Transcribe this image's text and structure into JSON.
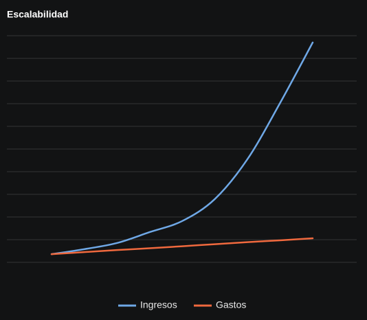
{
  "chart_data": {
    "type": "line",
    "title": "Escalabilidad",
    "categories": [
      null,
      null,
      null,
      null,
      null,
      null,
      null,
      null,
      null
    ],
    "series": [
      {
        "name": "Ingresos",
        "color": "#6fa8e6",
        "values": [
          0.36,
          0.58,
          0.85,
          1.33,
          1.82,
          2.79,
          4.55,
          7.03,
          9.7
        ]
      },
      {
        "name": "Gastos",
        "color": "#f0693e",
        "values": [
          0.36,
          0.45,
          0.54,
          0.62,
          0.71,
          0.8,
          0.89,
          0.97,
          1.06
        ]
      }
    ],
    "ylim": [
      0,
      10
    ],
    "yticks": [
      0,
      1,
      2,
      3,
      4,
      5,
      6,
      7,
      8,
      9,
      10
    ],
    "grid": true,
    "legend": "bottom"
  }
}
